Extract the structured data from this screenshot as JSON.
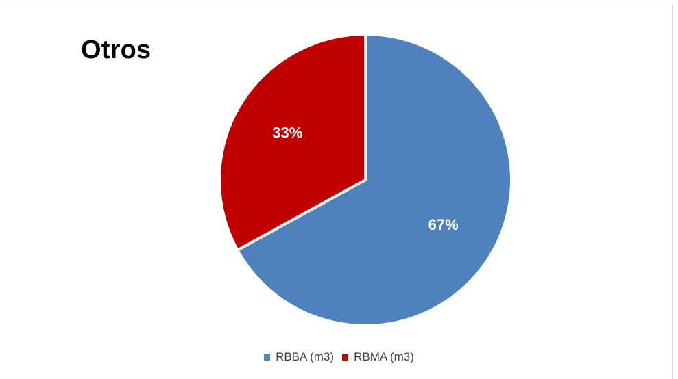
{
  "chart_data": {
    "type": "pie",
    "title": "Otros",
    "series": [
      {
        "name": "RBBA (m3)",
        "value": 67,
        "label": "67%",
        "color": "#4f81bd"
      },
      {
        "name": "RBMA (m3)",
        "value": 33,
        "label": "33%",
        "color": "#c00000"
      }
    ],
    "legend_position": "bottom"
  }
}
